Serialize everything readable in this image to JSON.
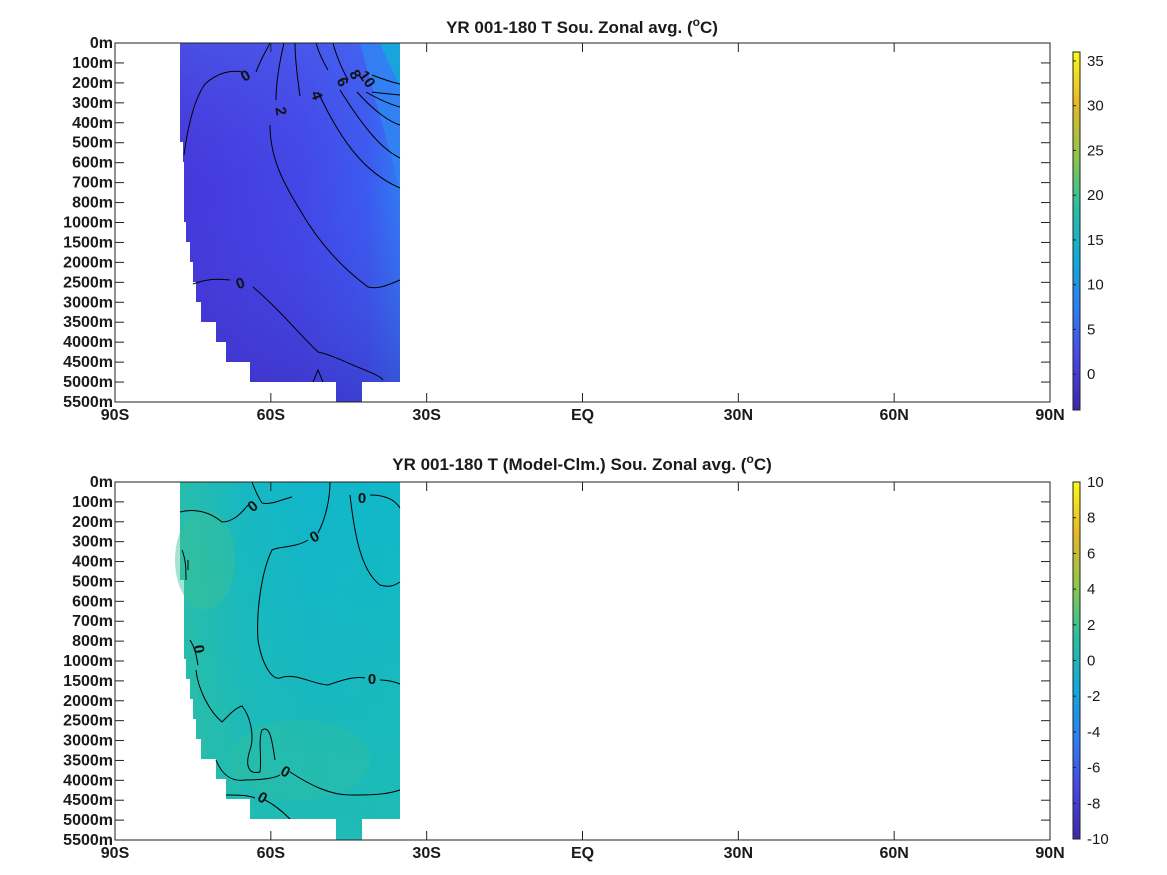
{
  "chart_data": [
    {
      "type": "heatmap",
      "title": "YR 001-180 T Sou. Zonal avg. (",
      "title_sup": "o",
      "title_end": "C)",
      "x_ticks": [
        "90S",
        "60S",
        "30S",
        "EQ",
        "30N",
        "60N",
        "90N"
      ],
      "x_values": [
        -90,
        -60,
        -30,
        0,
        30,
        60,
        90
      ],
      "xlim": [
        -90,
        90
      ],
      "y_ticks": [
        "0m",
        "100m",
        "200m",
        "300m",
        "400m",
        "500m",
        "600m",
        "700m",
        "800m",
        "1000m",
        "1500m",
        "2000m",
        "2500m",
        "3000m",
        "3500m",
        "4000m",
        "4500m",
        "5000m",
        "5500m"
      ],
      "colorbar": {
        "min": -4,
        "max": 36,
        "ticks": [
          0,
          5,
          10,
          15,
          20,
          25,
          30,
          35
        ]
      },
      "data_lat_range": [
        -78,
        -35
      ],
      "contour_labels": [
        "0",
        "2",
        "4",
        "6",
        "8",
        "10",
        "0"
      ],
      "colormap": [
        "#3e26a8",
        "#4745e6",
        "#2e7df6",
        "#10a9d9",
        "#2bbfa0",
        "#8fc64b",
        "#e8b72a",
        "#f9fb15"
      ]
    },
    {
      "type": "heatmap",
      "title": "YR 001-180 T (Model-Clm.) Sou. Zonal avg. (",
      "title_sup": "o",
      "title_end": "C)",
      "x_ticks": [
        "90S",
        "60S",
        "30S",
        "EQ",
        "30N",
        "60N",
        "90N"
      ],
      "x_values": [
        -90,
        -60,
        -30,
        0,
        30,
        60,
        90
      ],
      "xlim": [
        -90,
        90
      ],
      "y_ticks": [
        "0m",
        "100m",
        "200m",
        "300m",
        "400m",
        "500m",
        "600m",
        "700m",
        "800m",
        "1000m",
        "1500m",
        "2000m",
        "2500m",
        "3000m",
        "3500m",
        "4000m",
        "4500m",
        "5000m",
        "5500m"
      ],
      "colorbar": {
        "min": -10,
        "max": 10,
        "ticks": [
          10,
          8,
          6,
          4,
          2,
          0,
          -2,
          -4,
          -6,
          -8,
          -10
        ]
      },
      "data_lat_range": [
        -78,
        -35
      ],
      "contour_labels": [
        "0",
        "0",
        "0",
        "0",
        "0",
        "0",
        "0"
      ],
      "colormap": [
        "#3e26a8",
        "#4745e6",
        "#2e7df6",
        "#10a9d9",
        "#2bbfa0",
        "#8fc64b",
        "#e8b72a",
        "#f9fb15"
      ]
    }
  ]
}
